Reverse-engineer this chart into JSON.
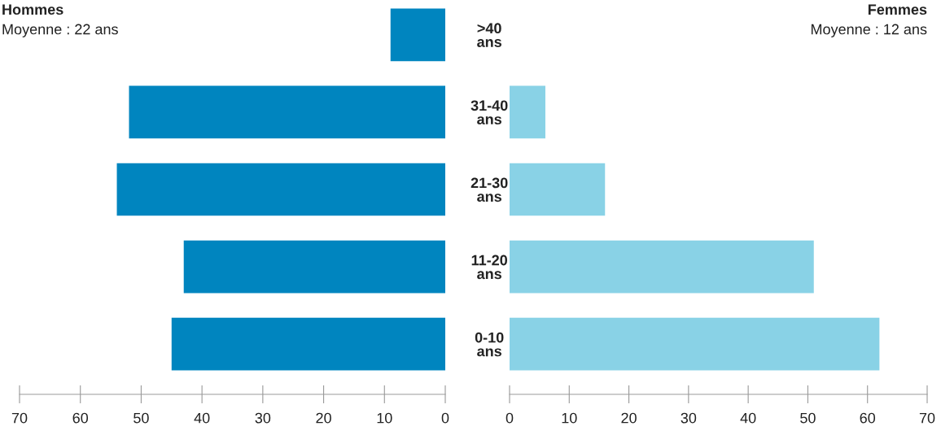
{
  "chart_data": [
    {
      "type": "bar",
      "orientation": "horizontal",
      "title": "Hommes",
      "subtitle": "Moyenne : 22 ans",
      "categories": [
        ">40\nans",
        "31-40\nans",
        "21-30\nans",
        "11-20\nans",
        "0-10\nans"
      ],
      "values": [
        9,
        52,
        54,
        43,
        45
      ],
      "color": "#0085bf",
      "xlim": [
        70,
        0
      ],
      "xticks": [
        70,
        60,
        50,
        40,
        30,
        20,
        10,
        0
      ],
      "grid": false,
      "legend": false
    },
    {
      "type": "bar",
      "orientation": "horizontal",
      "title": "Femmes",
      "subtitle": "Moyenne : 12 ans",
      "categories": [
        null,
        null,
        null,
        null,
        null
      ],
      "values": [
        0,
        6,
        16,
        51,
        62
      ],
      "color": "#89d2e6",
      "xlim": [
        0,
        70
      ],
      "xticks": [
        0,
        10,
        20,
        30,
        40,
        50,
        60,
        70
      ],
      "tick_labels": "x",
      "grid": false,
      "legend": false
    }
  ]
}
